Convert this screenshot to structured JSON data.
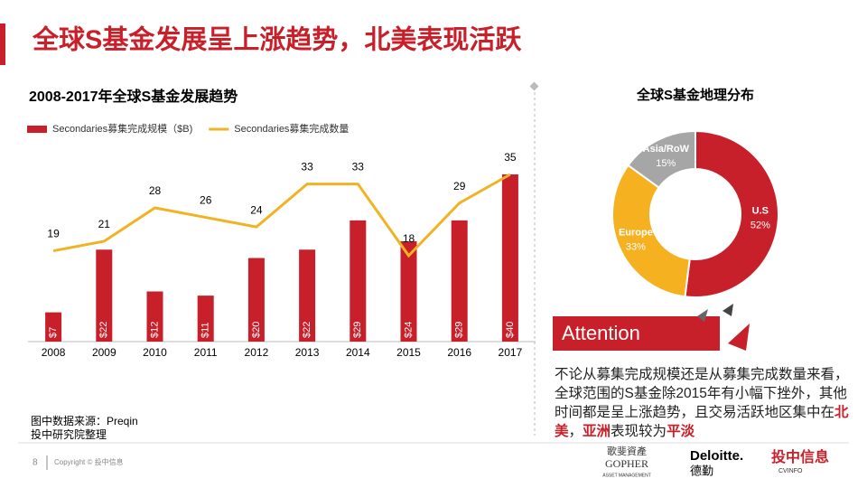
{
  "header": {
    "title": "全球S基金发展呈上涨趋势，北美表现活跃"
  },
  "chart_data": [
    {
      "type": "bar",
      "title": "2008-2017年全球S基金发展趋势",
      "categories": [
        "2008",
        "2009",
        "2010",
        "2011",
        "2012",
        "2013",
        "2014",
        "2015",
        "2016",
        "2017"
      ],
      "series": [
        {
          "name": "Secondaries募集完成规模（$B)",
          "type": "bar",
          "color": "#c8202a",
          "values": [
            7,
            22,
            12,
            11,
            20,
            22,
            29,
            24,
            29,
            40
          ],
          "value_labels": [
            "$7",
            "$22",
            "$12",
            "$11",
            "$20",
            "$22",
            "$29",
            "$24",
            "$29",
            "$40"
          ]
        },
        {
          "name": "Secondaries募集完成数量",
          "type": "line",
          "axis": "y2",
          "color": "#f0b323",
          "values": [
            19,
            21,
            28,
            26,
            24,
            33,
            33,
            18,
            29,
            35
          ]
        }
      ]
    },
    {
      "type": "pie",
      "title": "全球S基金地理分布",
      "categories": [
        "U.S",
        "Europe",
        "Asia/RoW"
      ],
      "values": [
        52,
        33,
        15
      ],
      "value_labels": [
        "52%",
        "33%",
        "15%"
      ],
      "colors": [
        "#c8202a",
        "#f5b120",
        "#a6a6a6"
      ]
    }
  ],
  "source": [
    "图中数据来源：Preqin",
    "投中研究院整理"
  ],
  "attention": {
    "label": "Attention",
    "body": [
      "不论从募集完成规模还是从募集完成数量来看，全球范围的S基金除2015年有小幅下挫外，其他时间都是呈上涨趋势，且交易活跃地区集中在",
      "北美",
      "，",
      "亚洲",
      "表现较为",
      "平淡"
    ]
  },
  "footer": {
    "page": "8",
    "copyright": "Copyright © 投中信息",
    "logos": [
      "歌斐資產",
      "GOPHER",
      "ASSET MANAGEMENT",
      "Deloitte.",
      "德勤",
      "投中信息",
      "CVINFO"
    ]
  }
}
